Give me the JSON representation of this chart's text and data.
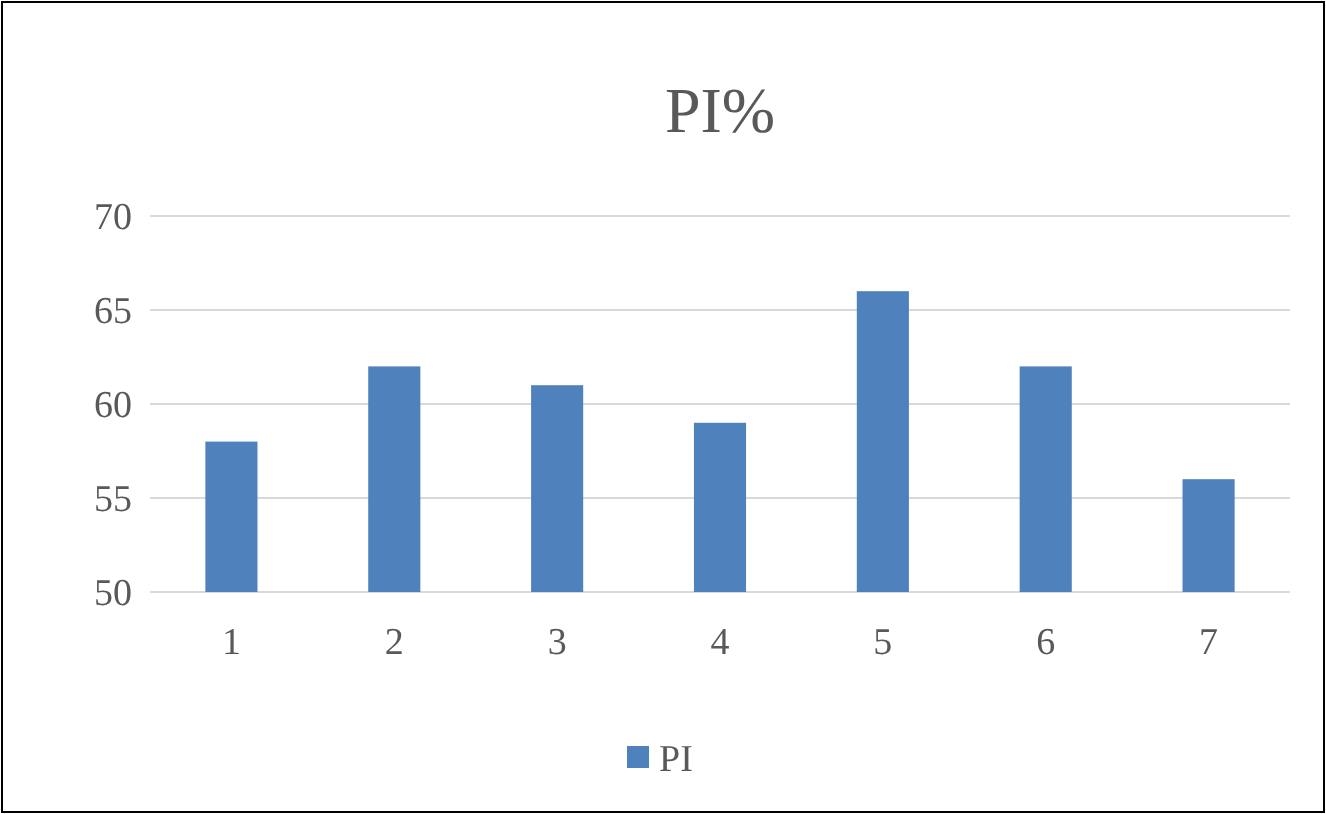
{
  "chart_data": {
    "type": "bar",
    "title": "PI%",
    "categories": [
      "1",
      "2",
      "3",
      "4",
      "5",
      "6",
      "7"
    ],
    "series": [
      {
        "name": "PI",
        "color": "#4f81bd",
        "values": [
          58,
          62,
          61,
          59,
          66,
          62,
          56
        ]
      }
    ],
    "ylim": [
      50,
      70
    ],
    "yticks": [
      50,
      55,
      60,
      65,
      70
    ],
    "grid": "y",
    "legend": "bottom"
  }
}
